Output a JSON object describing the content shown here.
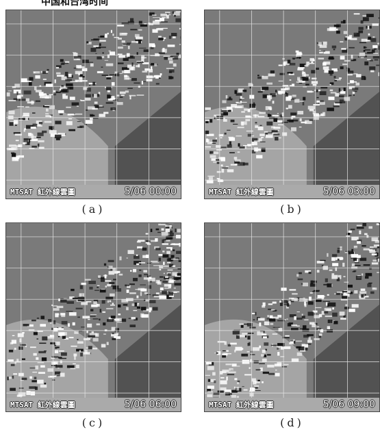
{
  "header": "中国和台湾时间",
  "panels": [
    {
      "title": "MTSAT 紅外線雲圖",
      "time": "5/06 00:00",
      "label": "(a)"
    },
    {
      "title": "MTSAT 紅外線雲圖",
      "time": "5/06 03:00",
      "label": "(b)"
    },
    {
      "title": "MTSAT 紅外線雲圖",
      "time": "5/06 06:00",
      "label": "(c)"
    },
    {
      "title": "MTSAT 紅外線雲圖",
      "time": "5/06 09:00",
      "label": "(d)"
    }
  ],
  "colors": {
    "land": "#7a7a7a",
    "cloud_bright": "#ffffff",
    "cloud_dark": "#111111",
    "grid": "#e8e8e8",
    "caption_bar": "#aaaaaa"
  }
}
